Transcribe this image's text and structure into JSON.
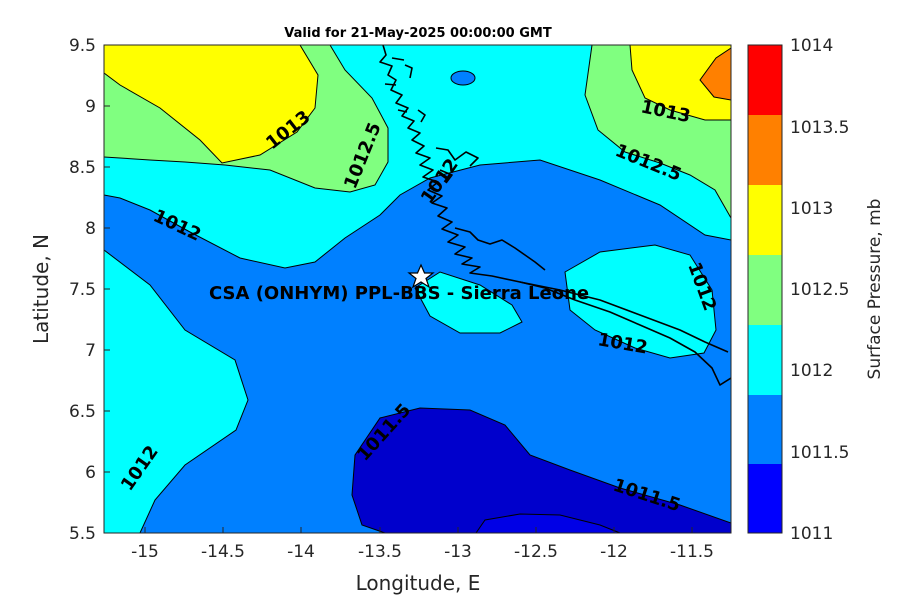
{
  "title": "Valid for 21-May-2025 00:00:00 GMT",
  "site_label": "CSA (ONHYM) PPL-BBS  - Sierra Leone",
  "site_marker": "white-star",
  "xlabel": "Longitude, E",
  "ylabel": "Latitude, N",
  "colorbar_label": "Surface Pressure, mb",
  "x_ticks": [
    "-15",
    "-14.5",
    "-14",
    "-13.5",
    "-13",
    "-12.5",
    "-12",
    "-11.5"
  ],
  "y_ticks": [
    "9.5",
    "9",
    "8.5",
    "8",
    "7.5",
    "7",
    "6.5",
    "6",
    "5.5"
  ],
  "colorbar": {
    "ticks": [
      "1014",
      "1013.5",
      "1013",
      "1012.5",
      "1012",
      "1011.5",
      "1011"
    ],
    "bands": [
      {
        "range": "1013.5-1014",
        "color": "#ff0000"
      },
      {
        "range": "1013-1013.5",
        "color": "#ff8000"
      },
      {
        "range": "1012.5-1013",
        "color": "#ffff00"
      },
      {
        "range": "1012-1012.5",
        "color": "#80ff80"
      },
      {
        "range": "1011.5-1012",
        "color": "#00ffff"
      },
      {
        "range": "1011-1011.5",
        "color": "#0080ff"
      },
      {
        "range": "<1011",
        "color": "#0000ff"
      }
    ]
  },
  "contour_labels": [
    {
      "text": "1013"
    },
    {
      "text": "1012.5"
    },
    {
      "text": "1012"
    },
    {
      "text": "1012"
    },
    {
      "text": "1013"
    },
    {
      "text": "1012.5"
    },
    {
      "text": "1012"
    },
    {
      "text": "1012"
    },
    {
      "text": "1011.5"
    },
    {
      "text": "1011.5"
    },
    {
      "text": "1012"
    }
  ],
  "chart_data": {
    "type": "heatmap",
    "title": "Valid for 21-May-2025 00:00:00 GMT",
    "xlabel": "Longitude, E",
    "ylabel": "Latitude, N",
    "xlim": [
      -15.25,
      -11.25
    ],
    "ylim": [
      5.5,
      9.5
    ],
    "colorbar_label": "Surface Pressure, mb",
    "colorbar_range": [
      1011,
      1014
    ],
    "levels": [
      1011,
      1011.5,
      1012,
      1012.5,
      1013,
      1013.5,
      1014
    ],
    "site": {
      "name": "CSA (ONHYM) PPL-BBS  - Sierra Leone",
      "lon": -13.25,
      "lat": 7.6
    },
    "grid": false
  }
}
